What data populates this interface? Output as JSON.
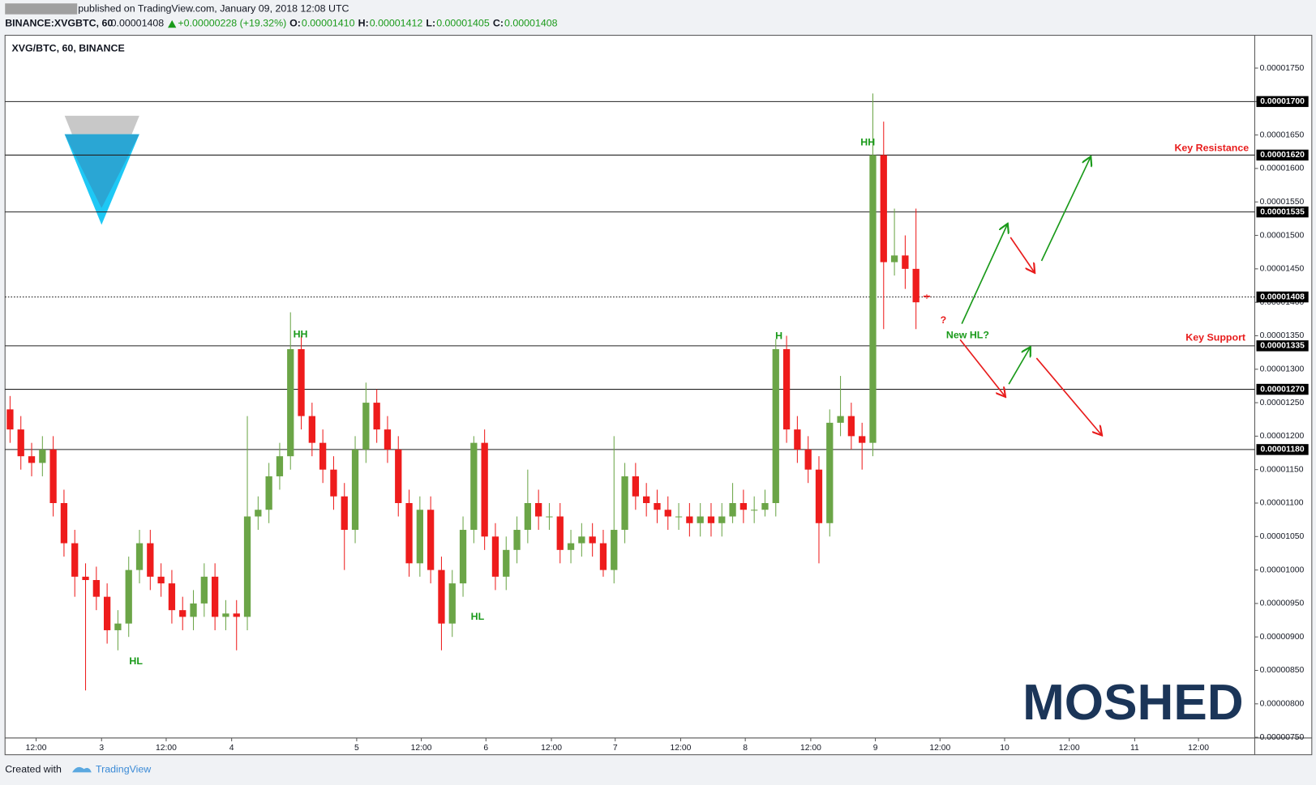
{
  "header": {
    "published": "published on TradingView.com, January 09, 2018 12:08 UTC",
    "symbol": "BINANCE:XVGBTC, 60",
    "last": "0.00001408",
    "change": "+0.00000228 (+19.32%)",
    "ohlc": [
      {
        "label": "O:",
        "value": "0.00001410"
      },
      {
        "label": "H:",
        "value": "0.00001412"
      },
      {
        "label": "L:",
        "value": "0.00001405"
      },
      {
        "label": "C:",
        "value": "0.00001408"
      }
    ]
  },
  "footer": {
    "created": "Created with",
    "brand": "TradingView"
  },
  "chart_data": {
    "type": "candlestick",
    "title": "XVG/BTC, 60, BINANCE",
    "watermark": "MOSHED",
    "up_color": "#6ba547",
    "down_color": "#ee1c1c",
    "categories": [
      "12:00",
      "3",
      "12:00",
      "4",
      "5",
      "12:00",
      "6",
      "12:00",
      "7",
      "12:00",
      "8",
      "12:00",
      "9",
      "12:00",
      "10",
      "12:00",
      "11",
      "12:00"
    ],
    "ylim": [
      7.49e-06,
      1.799e-05
    ],
    "yticks": [
      {
        "value": 7.5e-06,
        "label": "0.00000750"
      },
      {
        "value": 8e-06,
        "label": "0.00000800"
      },
      {
        "value": 8.5e-06,
        "label": "0.00000850"
      },
      {
        "value": 9e-06,
        "label": "0.00000900"
      },
      {
        "value": 9.5e-06,
        "label": "0.00000950"
      },
      {
        "value": 1e-05,
        "label": "0.00001000"
      },
      {
        "value": 1.05e-05,
        "label": "0.00001050"
      },
      {
        "value": 1.1e-05,
        "label": "0.00001100"
      },
      {
        "value": 1.15e-05,
        "label": "0.00001150"
      },
      {
        "value": 1.2e-05,
        "label": "0.00001200"
      },
      {
        "value": 1.25e-05,
        "label": "0.00001250"
      },
      {
        "value": 1.3e-05,
        "label": "0.00001300"
      },
      {
        "value": 1.35e-05,
        "label": "0.00001350"
      },
      {
        "value": 1.4e-05,
        "label": "0.00001400"
      },
      {
        "value": 1.45e-05,
        "label": "0.00001450"
      },
      {
        "value": 1.5e-05,
        "label": "0.00001500"
      },
      {
        "value": 1.55e-05,
        "label": "0.00001550"
      },
      {
        "value": 1.6e-05,
        "label": "0.00001600"
      },
      {
        "value": 1.65e-05,
        "label": "0.00001650"
      },
      {
        "value": 1.7e-05,
        "label": "0.00001700"
      },
      {
        "value": 1.75e-05,
        "label": "0.00001750"
      }
    ],
    "levels": [
      {
        "value": 1.7e-05,
        "label": "0.00001700",
        "style": "solid"
      },
      {
        "value": 1.62e-05,
        "label": "0.00001620",
        "style": "solid"
      },
      {
        "value": 1.535e-05,
        "label": "0.00001535",
        "style": "solid"
      },
      {
        "value": 1.408e-05,
        "label": "0.00001408",
        "style": "dotted"
      },
      {
        "value": 1.335e-05,
        "label": "0.00001335",
        "style": "solid"
      },
      {
        "value": 1.27e-05,
        "label": "0.00001270",
        "style": "solid"
      },
      {
        "value": 1.18e-05,
        "label": "0.00001180",
        "style": "solid"
      }
    ],
    "annotations": [
      "HH",
      "HL",
      "HL",
      "H",
      "HH",
      "New HL?",
      "?",
      "Key Resistance",
      "Key Support"
    ],
    "open": [
      1.24e-05,
      1.21e-05,
      1.17e-05,
      1.16e-05,
      1.18e-05,
      1.1e-05,
      1.04e-05,
      9.9e-06,
      9.85e-06,
      9.6e-06,
      9.1e-06,
      9.2e-06,
      1e-05,
      1.04e-05,
      9.9e-06,
      9.8e-06,
      9.4e-06,
      9.3e-06,
      9.5e-06,
      9.9e-06,
      9.3e-06,
      9.35e-06,
      9.3e-06,
      1.08e-05,
      1.09e-05,
      1.14e-05,
      1.17e-05,
      1.33e-05,
      1.23e-05,
      1.19e-05,
      1.15e-05,
      1.11e-05,
      1.06e-05,
      1.18e-05,
      1.25e-05,
      1.21e-05,
      1.18e-05,
      1.1e-05,
      1.01e-05,
      1.09e-05,
      1e-05,
      9.2e-06,
      9.8e-06,
      1.06e-05,
      1.19e-05,
      1.05e-05,
      9.9e-06,
      1.03e-05,
      1.06e-05,
      1.1e-05,
      1.08e-05,
      1.08e-05,
      1.03e-05,
      1.04e-05,
      1.05e-05,
      1.04e-05,
      1e-05,
      1.06e-05,
      1.14e-05,
      1.11e-05,
      1.1e-05,
      1.09e-05,
      1.08e-05,
      1.08e-05,
      1.07e-05,
      1.08e-05,
      1.07e-05,
      1.08e-05,
      1.1e-05,
      1.09e-05,
      1.09e-05,
      1.1e-05,
      1.33e-05,
      1.21e-05,
      1.18e-05,
      1.15e-05,
      1.07e-05,
      1.22e-05,
      1.23e-05,
      1.2e-05,
      1.19e-05,
      1.62e-05,
      1.46e-05,
      1.47e-05,
      1.45e-05,
      1.41e-05
    ],
    "high": [
      1.26e-05,
      1.23e-05,
      1.19e-05,
      1.2e-05,
      1.2e-05,
      1.12e-05,
      1.06e-05,
      1.01e-05,
      1.005e-05,
      9.8e-06,
      9.4e-06,
      1.02e-05,
      1.06e-05,
      1.06e-05,
      1.01e-05,
      1e-05,
      9.6e-06,
      9.7e-06,
      1.01e-05,
      1.01e-05,
      9.55e-06,
      9.55e-06,
      1.23e-05,
      1.11e-05,
      1.16e-05,
      1.19e-05,
      1.385e-05,
      1.35e-05,
      1.25e-05,
      1.21e-05,
      1.17e-05,
      1.13e-05,
      1.2e-05,
      1.28e-05,
      1.27e-05,
      1.23e-05,
      1.2e-05,
      1.12e-05,
      1.11e-05,
      1.11e-05,
      1.02e-05,
      1e-05,
      1.08e-05,
      1.2e-05,
      1.21e-05,
      1.07e-05,
      1.05e-05,
      1.08e-05,
      1.15e-05,
      1.12e-05,
      1.1e-05,
      1.1e-05,
      1.06e-05,
      1.07e-05,
      1.07e-05,
      1.06e-05,
      1.2e-05,
      1.16e-05,
      1.16e-05,
      1.13e-05,
      1.12e-05,
      1.11e-05,
      1.1e-05,
      1.1e-05,
      1.1e-05,
      1.1e-05,
      1.1e-05,
      1.13e-05,
      1.12e-05,
      1.11e-05,
      1.12e-05,
      1.345e-05,
      1.35e-05,
      1.23e-05,
      1.2e-05,
      1.17e-05,
      1.24e-05,
      1.29e-05,
      1.25e-05,
      1.22e-05,
      1.712e-05,
      1.67e-05,
      1.54e-05,
      1.5e-05,
      1.54e-05,
      1.412e-05
    ],
    "low": [
      1.19e-05,
      1.15e-05,
      1.14e-05,
      1.14e-05,
      1.08e-05,
      1.02e-05,
      9.6e-06,
      8.2e-06,
      9.4e-06,
      8.9e-06,
      8.8e-06,
      9e-06,
      9.8e-06,
      9.7e-06,
      9.6e-06,
      9.2e-06,
      9.1e-06,
      9.1e-06,
      9.3e-06,
      9.1e-06,
      9.1e-06,
      8.8e-06,
      9.1e-06,
      1.06e-05,
      1.07e-05,
      1.12e-05,
      1.15e-05,
      1.21e-05,
      1.17e-05,
      1.13e-05,
      1.09e-05,
      1e-05,
      1.04e-05,
      1.16e-05,
      1.19e-05,
      1.16e-05,
      1.08e-05,
      9.9e-06,
      9.9e-06,
      9.8e-06,
      8.8e-06,
      9e-06,
      9.6e-06,
      1.04e-05,
      1.03e-05,
      9.7e-06,
      9.7e-06,
      1.01e-05,
      1.04e-05,
      1.06e-05,
      1.06e-05,
      1.01e-05,
      1.01e-05,
      1.02e-05,
      1.02e-05,
      9.9e-06,
      9.8e-06,
      1.04e-05,
      1.09e-05,
      1.08e-05,
      1.07e-05,
      1.06e-05,
      1.06e-05,
      1.05e-05,
      1.05e-05,
      1.05e-05,
      1.05e-05,
      1.07e-05,
      1.07e-05,
      1.07e-05,
      1.08e-05,
      1.08e-05,
      1.19e-05,
      1.16e-05,
      1.13e-05,
      1.01e-05,
      1.05e-05,
      1.2e-05,
      1.18e-05,
      1.15e-05,
      1.17e-05,
      1.36e-05,
      1.44e-05,
      1.42e-05,
      1.36e-05,
      1.405e-05
    ],
    "close": [
      1.21e-05,
      1.17e-05,
      1.16e-05,
      1.18e-05,
      1.1e-05,
      1.04e-05,
      9.9e-06,
      9.85e-06,
      9.6e-06,
      9.1e-06,
      9.2e-06,
      1e-05,
      1.04e-05,
      9.9e-06,
      9.8e-06,
      9.4e-06,
      9.3e-06,
      9.5e-06,
      9.9e-06,
      9.3e-06,
      9.35e-06,
      9.3e-06,
      1.08e-05,
      1.09e-05,
      1.14e-05,
      1.17e-05,
      1.33e-05,
      1.23e-05,
      1.19e-05,
      1.15e-05,
      1.11e-05,
      1.06e-05,
      1.18e-05,
      1.25e-05,
      1.21e-05,
      1.18e-05,
      1.1e-05,
      1.01e-05,
      1.09e-05,
      1e-05,
      9.2e-06,
      9.8e-06,
      1.06e-05,
      1.19e-05,
      1.05e-05,
      9.9e-06,
      1.03e-05,
      1.06e-05,
      1.1e-05,
      1.08e-05,
      1.08e-05,
      1.03e-05,
      1.04e-05,
      1.05e-05,
      1.04e-05,
      1e-05,
      1.06e-05,
      1.14e-05,
      1.11e-05,
      1.1e-05,
      1.09e-05,
      1.08e-05,
      1.08e-05,
      1.07e-05,
      1.08e-05,
      1.07e-05,
      1.08e-05,
      1.1e-05,
      1.09e-05,
      1.09e-05,
      1.1e-05,
      1.33e-05,
      1.21e-05,
      1.18e-05,
      1.15e-05,
      1.07e-05,
      1.22e-05,
      1.23e-05,
      1.2e-05,
      1.19e-05,
      1.62e-05,
      1.46e-05,
      1.47e-05,
      1.45e-05,
      1.4e-05,
      1.408e-05
    ]
  }
}
